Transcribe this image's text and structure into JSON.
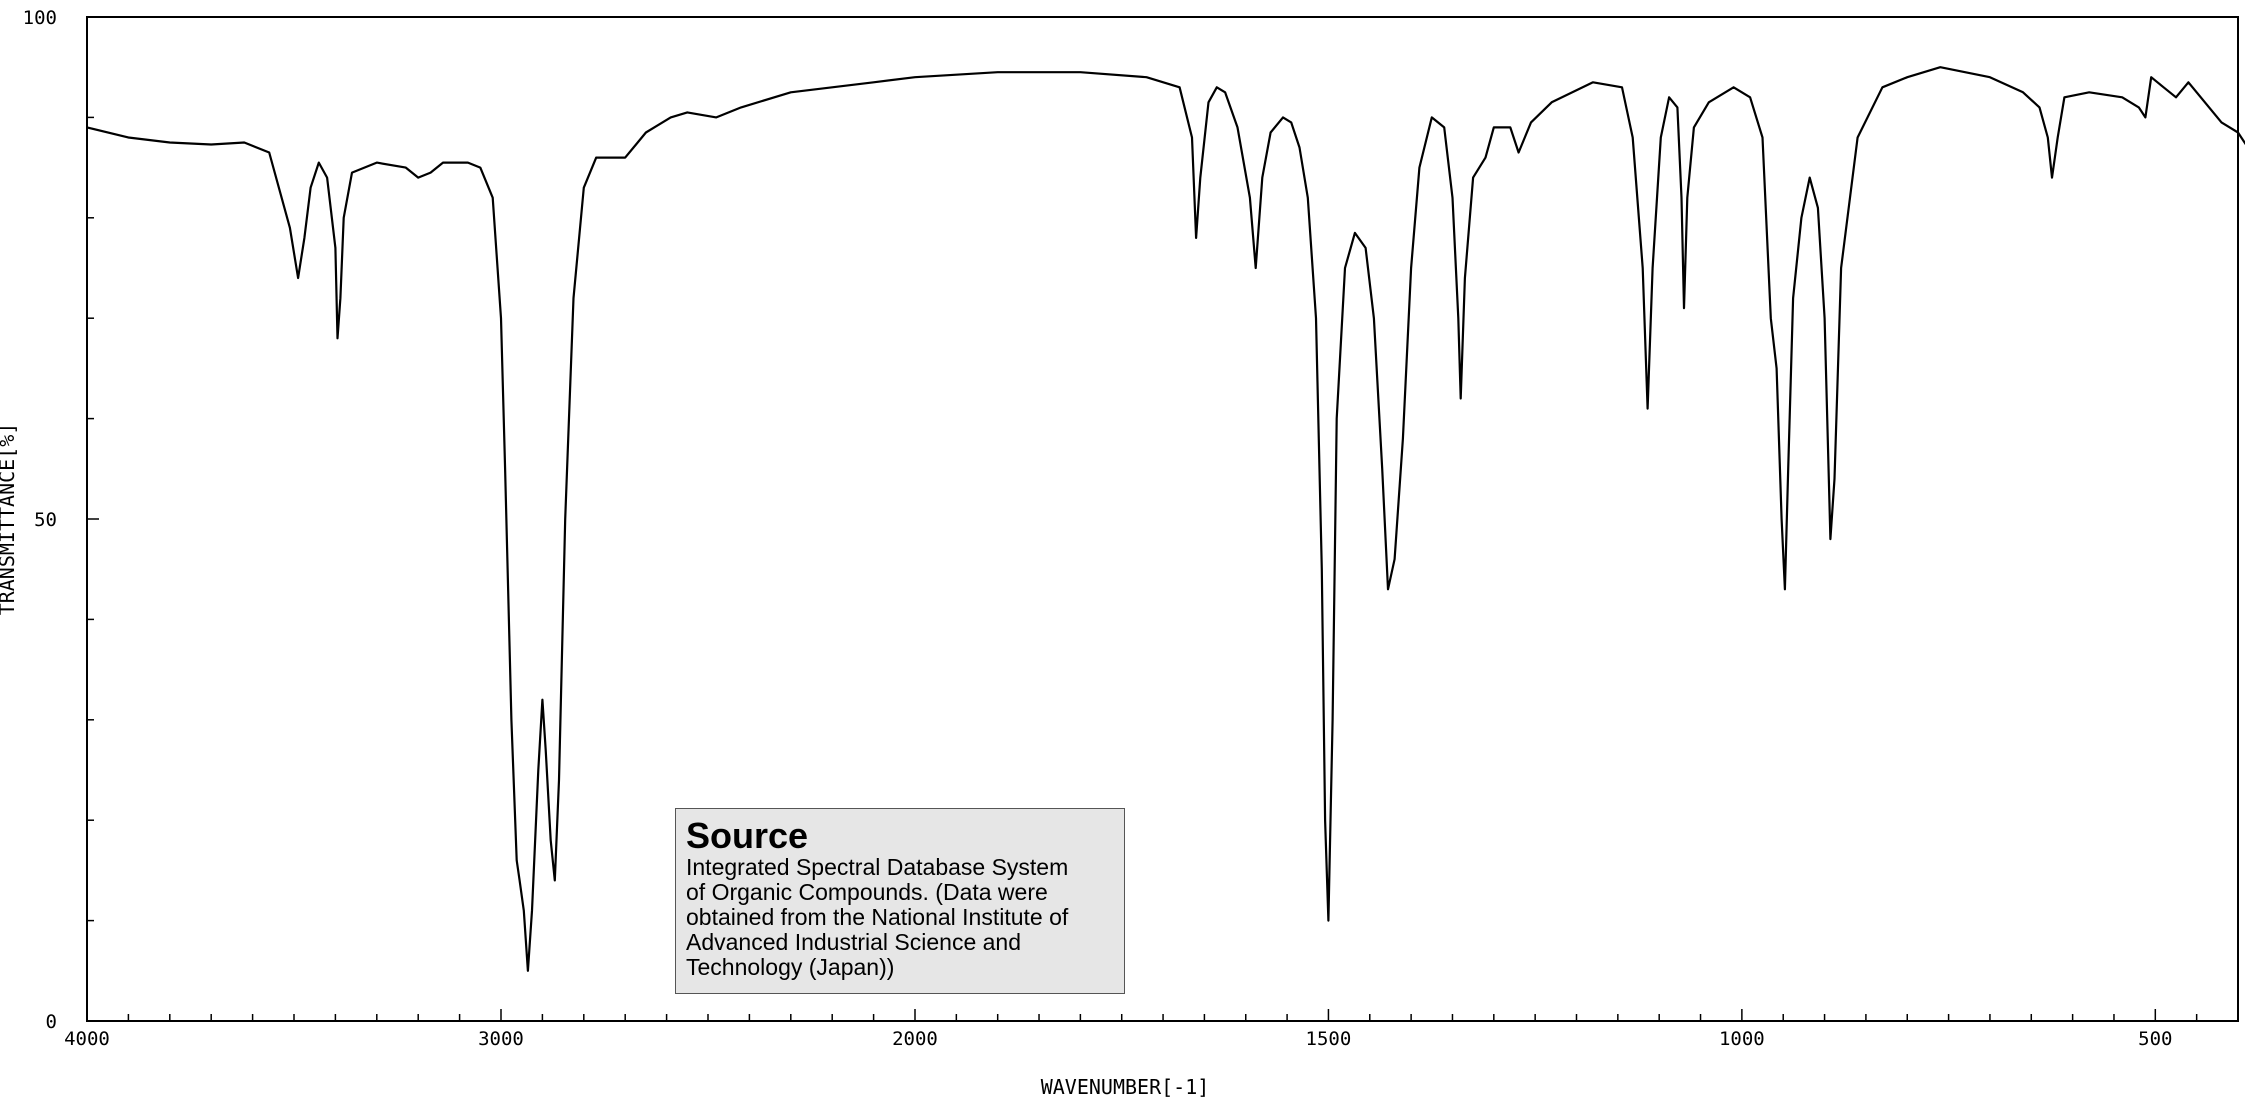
{
  "chart_data": {
    "type": "line",
    "title": "",
    "xlabel": "WAVENUMBER[-1]",
    "ylabel": "TRANSMITTANCE[%]",
    "xlim": [
      4000,
      400
    ],
    "ylim": [
      0,
      100
    ],
    "x_ticks": [
      4000,
      3000,
      2000,
      1500,
      1000,
      500
    ],
    "x_tick_labels": [
      "4000",
      "3000",
      "2000",
      "1500",
      "1000",
      "500"
    ],
    "y_ticks": [
      0,
      50,
      100
    ],
    "y_tick_labels": [
      "0",
      "50",
      "100"
    ],
    "series": [
      {
        "points": [
          [
            4000,
            89
          ],
          [
            3900,
            88
          ],
          [
            3800,
            87.5
          ],
          [
            3700,
            87.3
          ],
          [
            3620,
            87.5
          ],
          [
            3560,
            86.5
          ],
          [
            3510,
            79
          ],
          [
            3490,
            74
          ],
          [
            3475,
            78
          ],
          [
            3460,
            83
          ],
          [
            3440,
            85.5
          ],
          [
            3420,
            84
          ],
          [
            3400,
            77
          ],
          [
            3395,
            68
          ],
          [
            3388,
            72
          ],
          [
            3380,
            80
          ],
          [
            3360,
            84.5
          ],
          [
            3300,
            85.5
          ],
          [
            3230,
            85
          ],
          [
            3200,
            84
          ],
          [
            3170,
            84.5
          ],
          [
            3140,
            85.5
          ],
          [
            3080,
            85.5
          ],
          [
            3050,
            85
          ],
          [
            3020,
            82
          ],
          [
            3000,
            70
          ],
          [
            2990,
            55
          ],
          [
            2975,
            30
          ],
          [
            2962,
            16
          ],
          [
            2955,
            14
          ],
          [
            2945,
            11
          ],
          [
            2935,
            5
          ],
          [
            2925,
            11
          ],
          [
            2910,
            25
          ],
          [
            2900,
            32
          ],
          [
            2892,
            27
          ],
          [
            2880,
            18
          ],
          [
            2870,
            14
          ],
          [
            2860,
            24
          ],
          [
            2845,
            50
          ],
          [
            2825,
            72
          ],
          [
            2800,
            83
          ],
          [
            2770,
            86
          ],
          [
            2740,
            86
          ],
          [
            2700,
            86
          ],
          [
            2650,
            88.5
          ],
          [
            2590,
            90
          ],
          [
            2550,
            90.5
          ],
          [
            2480,
            90
          ],
          [
            2420,
            91
          ],
          [
            2300,
            92.5
          ],
          [
            2200,
            93
          ],
          [
            2100,
            93.5
          ],
          [
            2000,
            94
          ],
          [
            1900,
            94.5
          ],
          [
            1800,
            94.5
          ],
          [
            1720,
            94
          ],
          [
            1680,
            93
          ],
          [
            1665,
            88
          ],
          [
            1660,
            78
          ],
          [
            1655,
            84
          ],
          [
            1645,
            91.5
          ],
          [
            1635,
            93
          ],
          [
            1625,
            92.5
          ],
          [
            1610,
            89
          ],
          [
            1595,
            82
          ],
          [
            1588,
            75
          ],
          [
            1580,
            84
          ],
          [
            1570,
            88.5
          ],
          [
            1555,
            90
          ],
          [
            1545,
            89.5
          ],
          [
            1535,
            87
          ],
          [
            1525,
            82
          ],
          [
            1515,
            70
          ],
          [
            1508,
            45
          ],
          [
            1504,
            20
          ],
          [
            1500,
            10
          ],
          [
            1495,
            30
          ],
          [
            1490,
            60
          ],
          [
            1480,
            75
          ],
          [
            1468,
            78.5
          ],
          [
            1455,
            77
          ],
          [
            1445,
            70
          ],
          [
            1435,
            55
          ],
          [
            1428,
            43
          ],
          [
            1420,
            46
          ],
          [
            1410,
            58
          ],
          [
            1400,
            75
          ],
          [
            1390,
            85
          ],
          [
            1375,
            90
          ],
          [
            1360,
            89
          ],
          [
            1350,
            82
          ],
          [
            1343,
            70
          ],
          [
            1340,
            62
          ],
          [
            1335,
            74
          ],
          [
            1325,
            84
          ],
          [
            1310,
            86
          ],
          [
            1300,
            89
          ],
          [
            1280,
            89
          ],
          [
            1270,
            86.5
          ],
          [
            1255,
            89.5
          ],
          [
            1230,
            91.5
          ],
          [
            1180,
            93.5
          ],
          [
            1145,
            93
          ],
          [
            1132,
            88
          ],
          [
            1120,
            75
          ],
          [
            1114,
            61
          ],
          [
            1108,
            75
          ],
          [
            1098,
            88
          ],
          [
            1088,
            92
          ],
          [
            1078,
            91
          ],
          [
            1073,
            82
          ],
          [
            1070,
            71
          ],
          [
            1066,
            82
          ],
          [
            1058,
            89
          ],
          [
            1040,
            91.5
          ],
          [
            1010,
            93
          ],
          [
            990,
            92
          ],
          [
            975,
            88
          ],
          [
            965,
            70
          ],
          [
            958,
            65
          ],
          [
            952,
            50
          ],
          [
            948,
            43
          ],
          [
            944,
            55
          ],
          [
            938,
            72
          ],
          [
            928,
            80
          ],
          [
            918,
            84
          ],
          [
            908,
            81
          ],
          [
            900,
            70
          ],
          [
            893,
            48
          ],
          [
            888,
            54
          ],
          [
            880,
            75
          ],
          [
            860,
            88
          ],
          [
            830,
            93
          ],
          [
            800,
            94
          ],
          [
            760,
            95
          ],
          [
            700,
            94
          ],
          [
            660,
            92.5
          ],
          [
            640,
            91
          ],
          [
            630,
            88
          ],
          [
            625,
            84
          ],
          [
            618,
            88
          ],
          [
            610,
            92
          ],
          [
            580,
            92.5
          ],
          [
            540,
            92
          ],
          [
            520,
            91
          ],
          [
            512,
            90
          ],
          [
            505,
            94
          ],
          [
            490,
            93
          ],
          [
            475,
            92
          ],
          [
            460,
            93.5
          ],
          [
            440,
            91.5
          ],
          [
            420,
            89.5
          ],
          [
            400,
            88.5
          ],
          [
            380,
            86
          ],
          [
            360,
            85
          ],
          [
            352,
            80
          ],
          [
            347,
            72
          ],
          [
            342,
            70
          ]
        ]
      }
    ]
  },
  "source_box": {
    "title": "Source",
    "lines": [
      "Integrated Spectral Database System",
      "of Organic Compounds. (Data were",
      "obtained from the National Institute of",
      "Advanced Industrial Science and",
      "Technology (Japan))"
    ]
  }
}
